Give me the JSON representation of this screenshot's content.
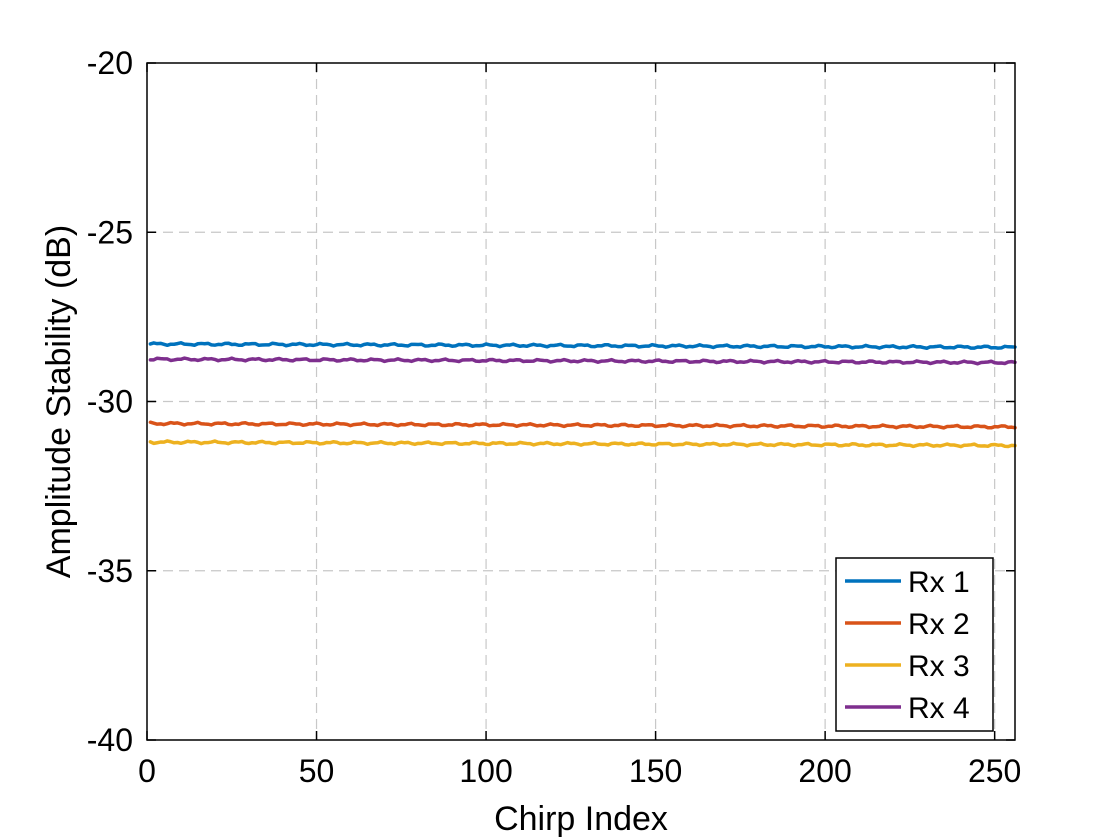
{
  "chart_data": {
    "type": "line",
    "title": "",
    "xlabel": "Chirp Index",
    "ylabel": "Amplitude Stability (dB)",
    "xlim": [
      0,
      256
    ],
    "ylim": [
      -40,
      -20
    ],
    "xticks": [
      0,
      50,
      100,
      150,
      200,
      250
    ],
    "yticks": [
      -40,
      -35,
      -30,
      -25,
      -20
    ],
    "grid": true,
    "legend": "bottom-right",
    "series": [
      {
        "name": "Rx 1",
        "color": "#0072BD",
        "x_start": 1,
        "x_end": 256,
        "y_start": -28.3,
        "y_end": -28.4
      },
      {
        "name": "Rx 2",
        "color": "#D95319",
        "x_start": 1,
        "x_end": 256,
        "y_start": -30.65,
        "y_end": -30.75
      },
      {
        "name": "Rx 3",
        "color": "#EDB120",
        "x_start": 1,
        "x_end": 256,
        "y_start": -31.2,
        "y_end": -31.3
      },
      {
        "name": "Rx 4",
        "color": "#7E2F8E",
        "x_start": 1,
        "x_end": 256,
        "y_start": -28.75,
        "y_end": -28.85
      }
    ]
  }
}
